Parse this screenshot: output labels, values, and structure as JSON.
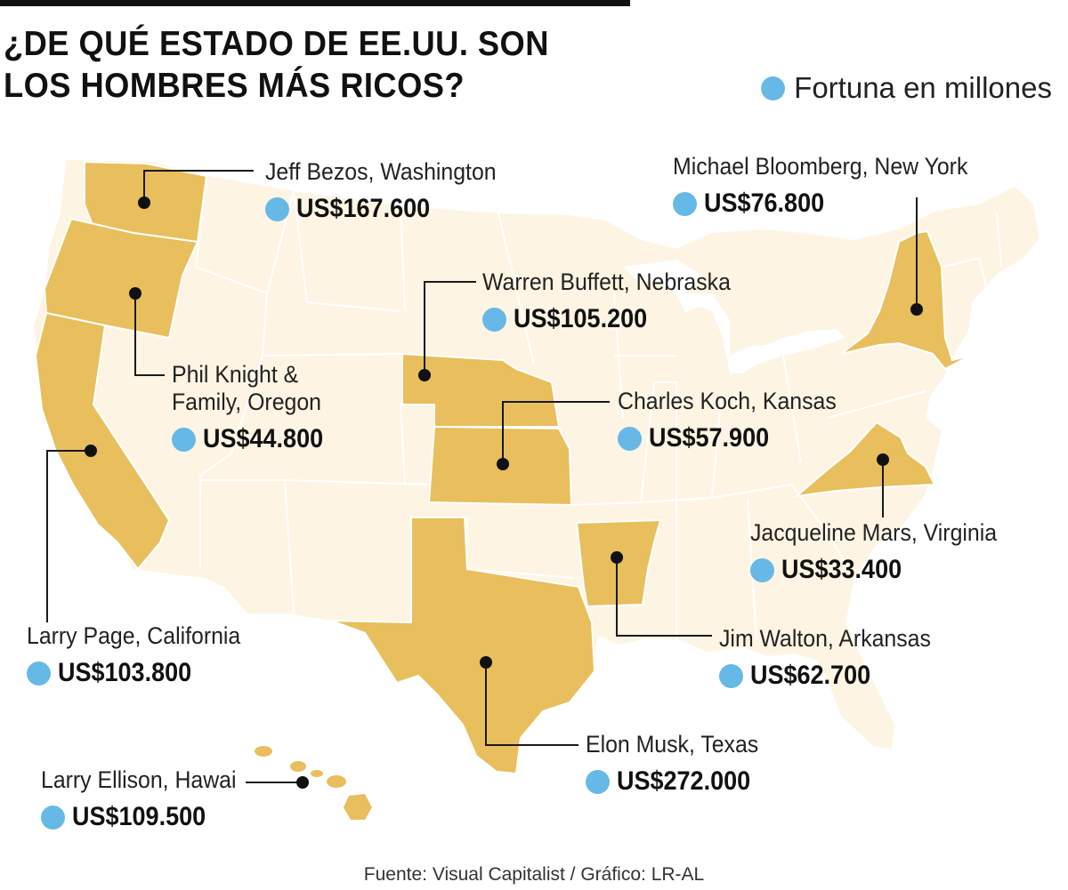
{
  "title": "¿DE QUÉ ESTADO DE EE.UU. SON LOS HOMBRES MÁS RICOS?",
  "legend": {
    "label": "Fortuna en millones",
    "color": "#66b9e6"
  },
  "colors": {
    "highlight_state": "#e8bf5c",
    "other_state": "#fdf4e3",
    "state_border": "#ffffff",
    "fortune_dot": "#66b9e6"
  },
  "entries": [
    {
      "state": "Washington",
      "name": "Jeff Bezos, Washington",
      "fortune": "US$167.600",
      "millions": 167600
    },
    {
      "state": "New York",
      "name": "Michael Bloomberg, New York",
      "fortune": "US$76.800",
      "millions": 76800
    },
    {
      "state": "Nebraska",
      "name": "Warren Buffett, Nebraska",
      "fortune": "US$105.200",
      "millions": 105200
    },
    {
      "state": "Oregon",
      "name": "Phil Knight & Family, Oregon",
      "fortune": "US$44.800",
      "millions": 44800
    },
    {
      "state": "Kansas",
      "name": "Charles Koch, Kansas",
      "fortune": "US$57.900",
      "millions": 57900
    },
    {
      "state": "Virginia",
      "name": "Jacqueline Mars, Virginia",
      "fortune": "US$33.400",
      "millions": 33400
    },
    {
      "state": "California",
      "name": "Larry Page, California",
      "fortune": "US$103.800",
      "millions": 103800
    },
    {
      "state": "Arkansas",
      "name": "Jim Walton, Arkansas",
      "fortune": "US$62.700",
      "millions": 62700
    },
    {
      "state": "Texas",
      "name": "Elon Musk, Texas",
      "fortune": "US$272.000",
      "millions": 272000
    },
    {
      "state": "Hawaii",
      "name": "Larry Ellison, Hawai",
      "fortune": "US$109.500",
      "millions": 109500
    }
  ],
  "source": "Fuente: Visual Capitalist / Gráfico: LR-AL"
}
